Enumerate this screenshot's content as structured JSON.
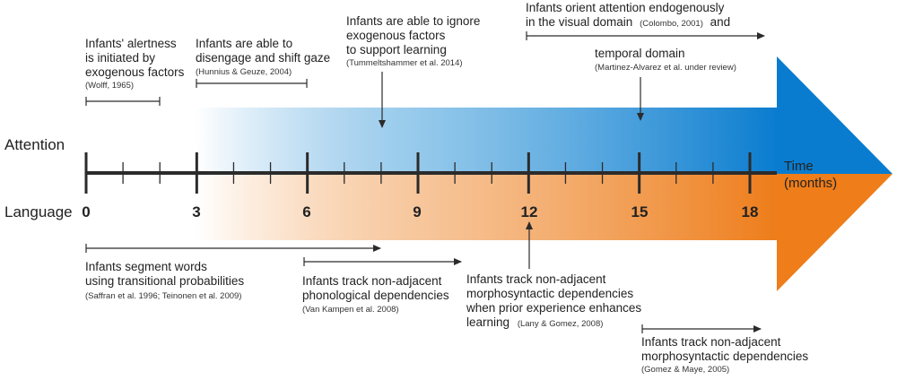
{
  "sides": {
    "attention": "Attention",
    "language": "Language"
  },
  "axis": {
    "ticks": [
      "0",
      "3",
      "6",
      "9",
      "12",
      "15",
      "18"
    ],
    "time_label": "Time",
    "unit_label": "(months)"
  },
  "attention_events": [
    {
      "lines": [
        "Infants' alertness",
        "is initiated by",
        "exogenous factors"
      ],
      "citation": "(Wolff, 1965)"
    },
    {
      "lines": [
        "Infants are able to",
        "disengage and shift gaze"
      ],
      "citation": "(Hunnius & Geuze, 2004)"
    },
    {
      "lines": [
        "Infants are able to ignore",
        "exogenous factors",
        "to support learning"
      ],
      "citation": "(Tummeltshammer et al. 2014)"
    },
    {
      "lines": [
        "Infants orient attention endogenously",
        "in the visual domain"
      ],
      "inline_citation": "(Colombo, 2001)",
      "suffix": "and"
    },
    {
      "lines": [
        "temporal domain"
      ],
      "citation": "(Martinez-Alvarez et al. under review)"
    }
  ],
  "language_events": [
    {
      "lines": [
        "Infants segment words",
        "using transitional probabilities"
      ],
      "citation": "(Saffran et al. 1996; Teinonen et al. 2009)"
    },
    {
      "lines": [
        "Infants track non-adjacent",
        "phonological dependencies"
      ],
      "citation": "(Van Kampen et al. 2008)"
    },
    {
      "lines": [
        "Infants track non-adjacent",
        "morphosyntactic dependencies",
        "when prior experience enhances",
        "learning"
      ],
      "citation": "(Lany & Gomez, 2008)"
    },
    {
      "lines": [
        "Infants track non-adjacent",
        "morphosyntactic dependencies"
      ],
      "citation": "(Gomez & Maye, 2005)"
    }
  ],
  "colors": {
    "attention_band": "#0a7ccf",
    "language_band": "#ee7d1a",
    "axis": "#2b2b2b"
  }
}
